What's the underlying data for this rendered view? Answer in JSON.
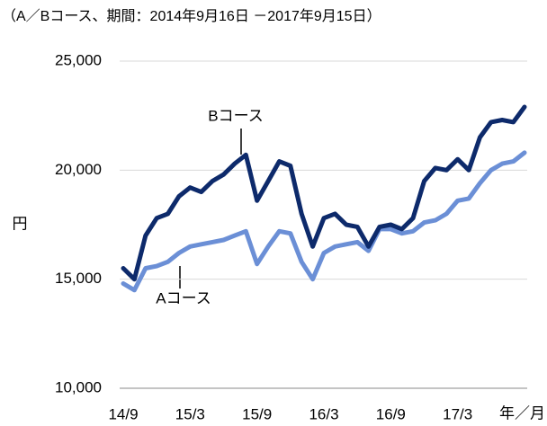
{
  "chart_data": {
    "type": "line",
    "title": "（A／Bコース、期間：2014年9月16日 －2017年9月15日）",
    "y_label": "円",
    "x_label": "年／月",
    "annotations": [
      "Bコース",
      "Aコース"
    ],
    "categories": [
      "14/9",
      null,
      null,
      null,
      null,
      null,
      "15/3",
      null,
      null,
      null,
      null,
      null,
      "15/9",
      null,
      null,
      null,
      null,
      null,
      "16/3",
      null,
      null,
      null,
      null,
      null,
      "16/9",
      null,
      null,
      null,
      null,
      null,
      "17/3",
      null,
      null,
      null,
      null,
      null,
      null
    ],
    "series": [
      {
        "name": "Bコース",
        "color": "#0d2a6b",
        "values": [
          15500,
          15000,
          17000,
          17800,
          18000,
          18800,
          19200,
          19000,
          19500,
          19800,
          20300,
          20700,
          18600,
          19500,
          20400,
          20200,
          18000,
          16500,
          17800,
          18000,
          17500,
          17400,
          16500,
          17400,
          17500,
          17300,
          17800,
          19500,
          20100,
          20000,
          20500,
          20000,
          21500,
          22200,
          22300,
          22200,
          22900
        ]
      },
      {
        "name": "Aコース",
        "color": "#6b8fd6",
        "values": [
          14800,
          14500,
          15500,
          15600,
          15800,
          16200,
          16500,
          16600,
          16700,
          16800,
          17000,
          17200,
          15700,
          16500,
          17200,
          17100,
          15800,
          15000,
          16200,
          16500,
          16600,
          16700,
          16300,
          17300,
          17300,
          17100,
          17200,
          17600,
          17700,
          18000,
          18600,
          18700,
          19400,
          20000,
          20300,
          20400,
          20800
        ]
      }
    ],
    "ylim": [
      10000,
      25000
    ],
    "yticks": [
      {
        "value": 10000,
        "label": "10,000"
      },
      {
        "value": 15000,
        "label": "15,000"
      },
      {
        "value": 20000,
        "label": "20,000"
      },
      {
        "value": 25000,
        "label": "25,000"
      }
    ],
    "grid": true
  }
}
